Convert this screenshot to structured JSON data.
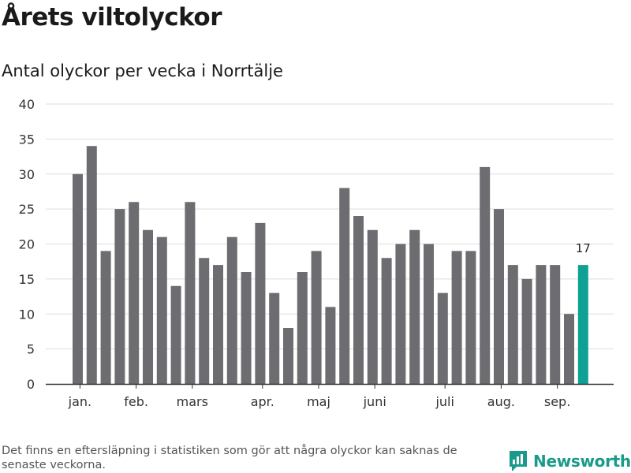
{
  "title": "Årets viltolyckor",
  "subtitle": "Antal olyckor per vecka i Norrtälje",
  "footnote": "Det finns en eftersläpning i statistiken som gör att några olyckor kan saknas de senaste veckorna.",
  "brand": "Newsworthy",
  "colors": {
    "bar": "#6d6c71",
    "highlight": "#0fa195",
    "grid": "#dddddd",
    "axis": "#333333"
  },
  "chart_data": {
    "type": "bar",
    "values": [
      30,
      34,
      19,
      25,
      26,
      22,
      21,
      14,
      26,
      18,
      17,
      21,
      16,
      23,
      13,
      8,
      16,
      19,
      11,
      28,
      24,
      22,
      18,
      20,
      22,
      20,
      13,
      19,
      19,
      31,
      25,
      17,
      15,
      17,
      17,
      10,
      17
    ],
    "highlight_index": 36,
    "highlight_label": "17",
    "ylim": [
      0,
      40
    ],
    "yticks": [
      0,
      5,
      10,
      15,
      20,
      25,
      30,
      35,
      40
    ],
    "month_labels": [
      {
        "label": "jan.",
        "bar_index": 0.5
      },
      {
        "label": "feb.",
        "bar_index": 4.5
      },
      {
        "label": "mars",
        "bar_index": 8.5
      },
      {
        "label": "apr.",
        "bar_index": 13.5
      },
      {
        "label": "maj",
        "bar_index": 17.5
      },
      {
        "label": "juni",
        "bar_index": 21.5
      },
      {
        "label": "juli",
        "bar_index": 26.5
      },
      {
        "label": "aug.",
        "bar_index": 30.5
      },
      {
        "label": "sep.",
        "bar_index": 34.5
      }
    ],
    "grid": true
  }
}
